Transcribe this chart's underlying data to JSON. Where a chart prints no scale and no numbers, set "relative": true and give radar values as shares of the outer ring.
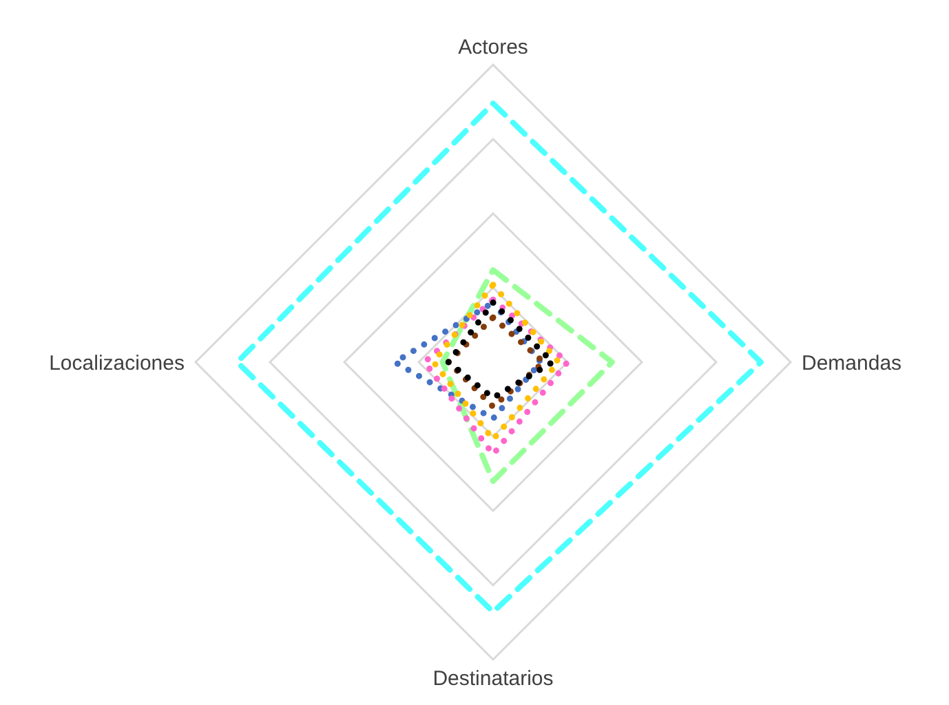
{
  "chart_data": {
    "type": "radar",
    "relative": true,
    "categories": [
      "Actores",
      "Demandas",
      "Destinatarios",
      "Localizaciones"
    ],
    "grid": true,
    "legend": false,
    "series": [
      {
        "color": "#4dffff",
        "line_style": "dashed",
        "values": [
          0.87,
          0.9,
          0.84,
          0.86
        ]
      },
      {
        "color": "#99ff99",
        "line_style": "dashed",
        "values": [
          0.31,
          0.4,
          0.4,
          0.17
        ]
      },
      {
        "color": "#4472c4",
        "line_style": "dotted",
        "values": [
          0.2,
          0.16,
          0.19,
          0.33
        ]
      },
      {
        "color": "#ff66cc",
        "line_style": "dotted",
        "values": [
          0.21,
          0.25,
          0.31,
          0.23
        ]
      },
      {
        "color": "#ffc000",
        "line_style": "dotted",
        "values": [
          0.26,
          0.22,
          0.26,
          0.2
        ]
      },
      {
        "color": "#843c0c",
        "line_style": "dotted",
        "values": [
          0.15,
          0.17,
          0.15,
          0.15
        ]
      },
      {
        "color": "#000000",
        "line_style": "dotted",
        "values": [
          0.2,
          0.2,
          0.12,
          0.15
        ]
      }
    ]
  }
}
